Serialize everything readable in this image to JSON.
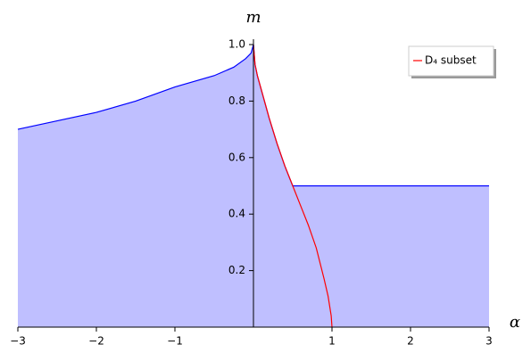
{
  "chart_data": {
    "type": "area-line",
    "xlabel": "α",
    "ylabel": "m",
    "xlim": [
      -3,
      3
    ],
    "ylim": [
      0,
      1
    ],
    "xticks": [
      {
        "value": -3,
        "label": "−3"
      },
      {
        "value": -2,
        "label": "−2"
      },
      {
        "value": -1,
        "label": "−1"
      },
      1,
      2,
      3
    ],
    "yticks": [
      0.2,
      0.4,
      0.6,
      0.8,
      {
        "value": 1,
        "label": "1.0"
      }
    ],
    "legend": "upper right",
    "series": [
      {
        "name": null,
        "color": "#0000ff",
        "fill": "#bfbfff",
        "x": [
          -3,
          -2.5,
          -2,
          -1.5,
          -1,
          -0.5,
          -0.25,
          -0.1,
          -0.03,
          0,
          0.02,
          0.05,
          0.1,
          0.2,
          0.3,
          0.4,
          0.5,
          3
        ],
        "values": [
          0.7,
          0.73,
          0.76,
          0.8,
          0.85,
          0.89,
          0.92,
          0.95,
          0.97,
          1,
          0.93,
          0.89,
          0.84,
          0.74,
          0.65,
          0.57,
          0.5,
          0.5
        ]
      },
      {
        "name": "D₄ subset",
        "color": "#ff0000",
        "x": [
          0,
          0.02,
          0.05,
          0.1,
          0.2,
          0.3,
          0.4,
          0.5,
          0.6,
          0.7,
          0.8,
          0.9,
          0.95,
          0.99,
          1
        ],
        "values": [
          1,
          0.93,
          0.89,
          0.84,
          0.74,
          0.65,
          0.57,
          0.5,
          0.43,
          0.36,
          0.28,
          0.17,
          0.11,
          0.04,
          0
        ]
      }
    ]
  }
}
